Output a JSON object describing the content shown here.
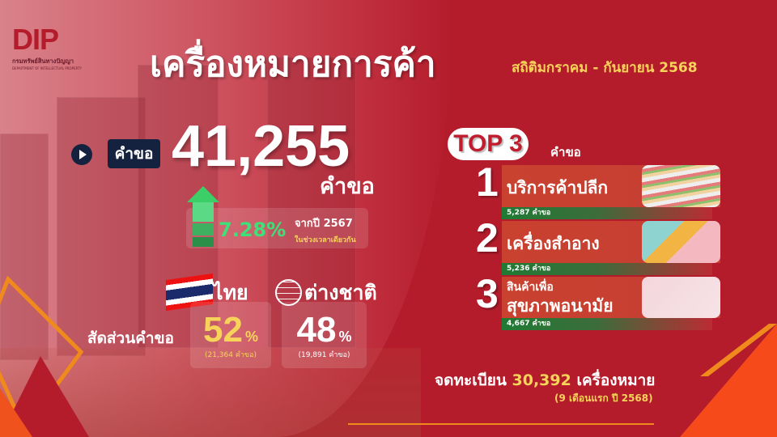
{
  "logo": {
    "mark": "DIP",
    "thai_name": "กรมทรัพย์สินทางปัญญา",
    "english_name": "DEPARTMENT OF INTELLECTUAL PROPERTY"
  },
  "header": {
    "title": "เครื่องหมายการค้า",
    "period": "สถิติมกราคม -  กันยายน 2568"
  },
  "requests": {
    "label": "คำขอ",
    "total": "41,255",
    "unit": "คำขอ",
    "growth_percent": "7.28%",
    "growth_compare": "จากปี 2567",
    "growth_note": "ในช่วงเวลาเดียวกัน"
  },
  "share": {
    "label": "สัดส่วนคำขอ",
    "thai": {
      "label": "ไทย",
      "percent": "52",
      "pct_sign": "%",
      "count": "(21,364 คำขอ)"
    },
    "foreign": {
      "label": "ต่างชาติ",
      "percent": "48",
      "pct_sign": "%",
      "count": "(19,891 คำขอ)"
    }
  },
  "top3": {
    "badge": "TOP 3",
    "unit": "คำขอ",
    "items": [
      {
        "rank": "1",
        "name": "บริการค้าปลีก",
        "count": "5,287 คำขอ",
        "image": "supermarket-shelves"
      },
      {
        "rank": "2",
        "name": "เครื่องสำอาง",
        "count": "5,236 คำขอ",
        "image": "cosmetics"
      },
      {
        "rank": "3",
        "name_line1": "สินค้าเพื่อ",
        "name_line2": "สุขภาพอนามัย",
        "count": "4,667 คำขอ",
        "image": "health-devices"
      }
    ]
  },
  "registered": {
    "prefix": "จดทะเบียน",
    "value": "30,392",
    "suffix": "เครื่องหมาย",
    "note": "(9 เดือนแรก ปี 2568)"
  },
  "colors": {
    "background": "#b41c2b",
    "accent_yellow": "#f7d35a",
    "growth_green": "#3ee07a",
    "navy": "#15223f",
    "orange": "#f08a1c"
  }
}
